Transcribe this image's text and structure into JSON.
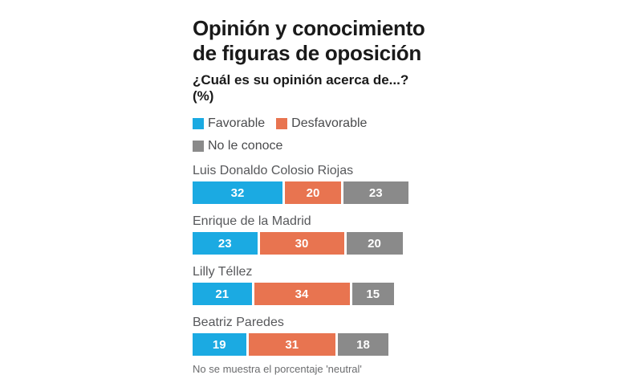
{
  "header": {
    "title_line1": "Opinión y conocimiento",
    "title_line2": "de figuras de oposición",
    "subtitle": "¿Cuál es su opinión acerca de...? (%)"
  },
  "legend": {
    "items": [
      {
        "label": "Favorable",
        "color": "#1BAAE2"
      },
      {
        "label": "Desfavorable",
        "color": "#E87450"
      },
      {
        "label": "No le conoce",
        "color": "#8A8A8A"
      }
    ]
  },
  "footnote": "No se muestra el porcentaje 'neutral'",
  "chart_data": {
    "type": "bar",
    "orientation": "horizontal",
    "stacked": true,
    "units": "%",
    "title": "Opinión y conocimiento de figuras de oposición",
    "subtitle": "¿Cuál es su opinión acerca de...? (%)",
    "categories": [
      "Luis Donaldo Colosio Riojas",
      "Enrique de la Madrid",
      "Lilly Téllez",
      "Beatriz Paredes"
    ],
    "series": [
      {
        "name": "Favorable",
        "color": "#1BAAE2",
        "values": [
          32,
          23,
          21,
          19
        ]
      },
      {
        "name": "Desfavorable",
        "color": "#E87450",
        "values": [
          20,
          30,
          34,
          31
        ]
      },
      {
        "name": "No le conoce",
        "color": "#8A8A8A",
        "values": [
          23,
          20,
          15,
          18
        ]
      }
    ],
    "value_labels": true,
    "xlim": [
      0,
      40
    ],
    "grid": false,
    "legend_position": "top",
    "note": "No se muestra el porcentaje 'neutral'"
  }
}
